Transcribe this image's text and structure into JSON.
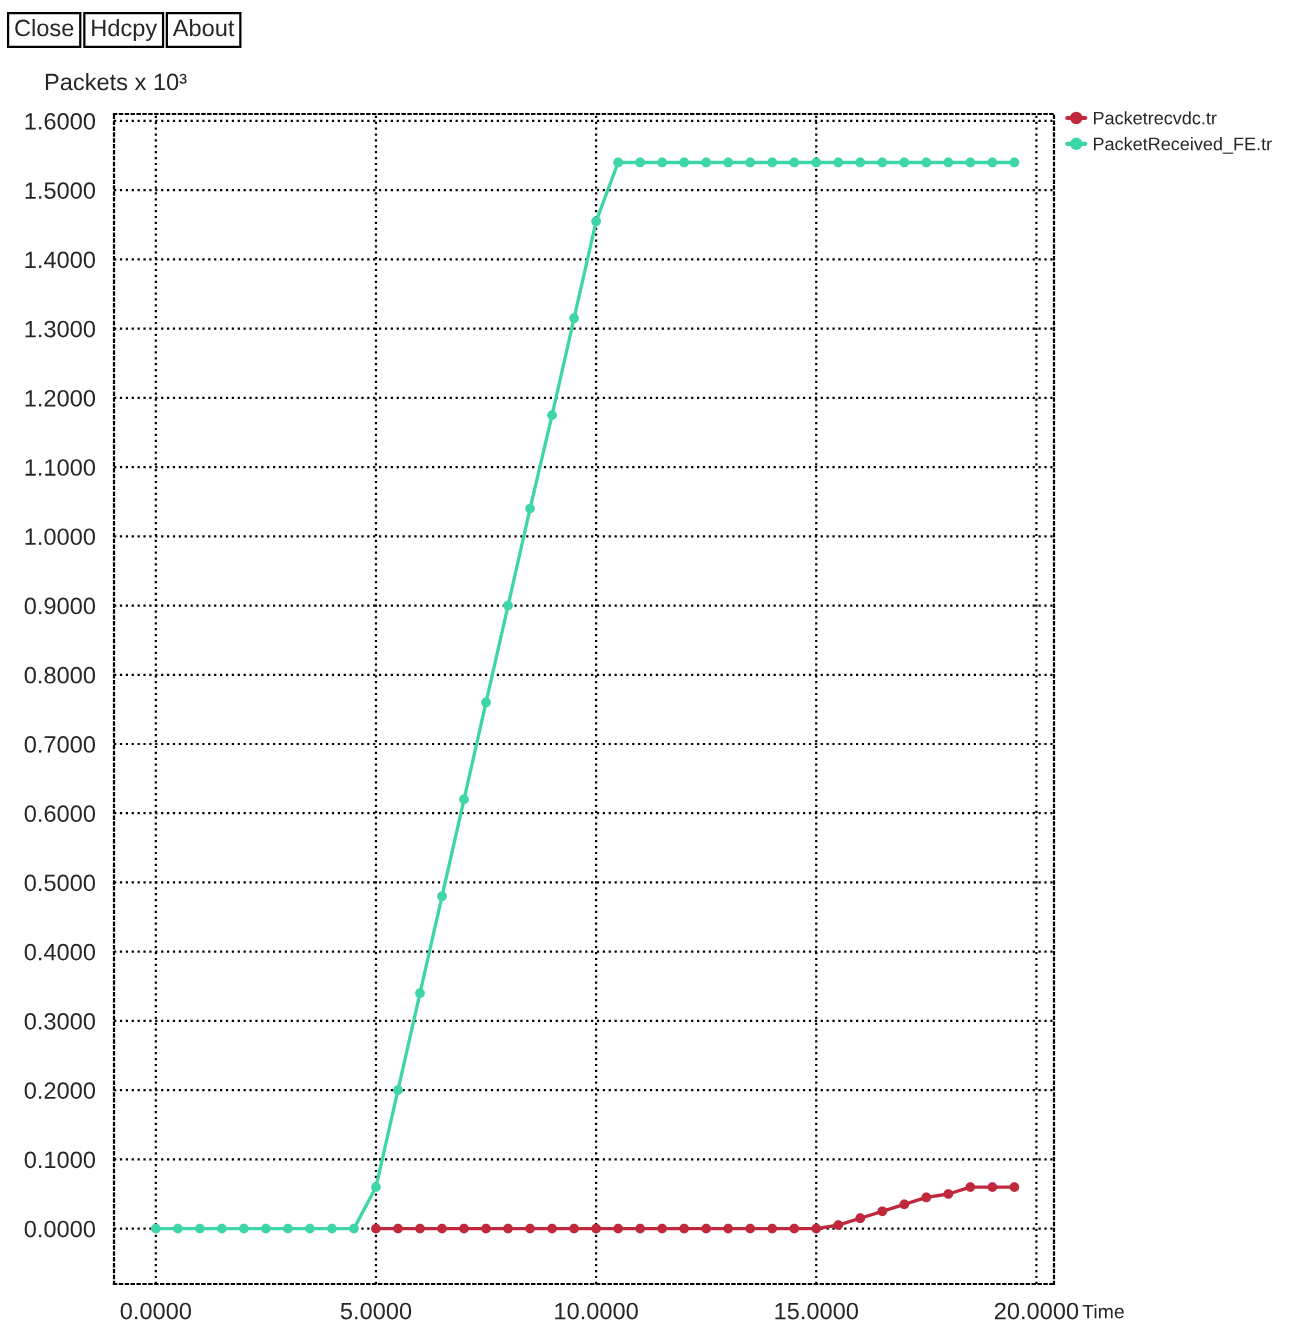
{
  "chart_data": {
    "type": "line",
    "xlabel": "Time",
    "ylabel": "Packets x 10³",
    "annotations": [
      "Close",
      "Hdcpy",
      "About"
    ],
    "x": [
      0,
      0.5,
      1,
      1.5,
      2,
      2.5,
      3,
      3.5,
      4,
      4.5,
      5,
      5.5,
      6,
      6.5,
      7,
      7.5,
      8,
      8.5,
      9,
      9.5,
      10,
      10.5,
      11,
      11.5,
      12,
      12.5,
      13,
      13.5,
      14,
      14.5,
      15,
      15.5,
      16,
      16.5,
      17,
      17.5,
      18,
      18.5,
      19,
      19.5
    ],
    "series": [
      {
        "name": "Packetrecvdc.tr",
        "color": "#c0283c",
        "values": [
          null,
          null,
          null,
          null,
          null,
          null,
          null,
          null,
          null,
          null,
          0,
          0,
          0,
          0,
          0,
          0,
          0,
          0,
          0,
          0,
          0,
          0,
          0,
          0,
          0,
          0,
          0,
          0,
          0,
          0,
          0,
          0.005,
          0.015,
          0.025,
          0.035,
          0.045,
          0.05,
          0.06,
          0.06,
          0.06
        ]
      },
      {
        "name": "PacketReceived_FE.tr",
        "color": "#3ed6a8",
        "values": [
          0,
          0,
          0,
          0,
          0,
          0,
          0,
          0,
          0,
          0,
          0.06,
          0.2,
          0.34,
          0.48,
          0.62,
          0.76,
          0.9,
          1.04,
          1.175,
          1.315,
          1.455,
          1.54,
          1.54,
          1.54,
          1.54,
          1.54,
          1.54,
          1.54,
          1.54,
          1.54,
          1.54,
          1.54,
          1.54,
          1.54,
          1.54,
          1.54,
          1.54,
          1.54,
          1.54,
          1.54
        ]
      }
    ],
    "xlim": [
      -0.95,
      20.4
    ],
    "ylim": [
      -0.08,
      1.61
    ],
    "xticks": [
      {
        "value": 0,
        "label": "0.0000"
      },
      {
        "value": 5,
        "label": "5.0000"
      },
      {
        "value": 10,
        "label": "10.0000"
      },
      {
        "value": 15,
        "label": "15.0000"
      },
      {
        "value": 20,
        "label": "20.0000"
      }
    ],
    "yticks": [
      {
        "value": 0,
        "label": "0.0000"
      },
      {
        "value": 0.1,
        "label": "0.1000"
      },
      {
        "value": 0.2,
        "label": "0.2000"
      },
      {
        "value": 0.3,
        "label": "0.3000"
      },
      {
        "value": 0.4,
        "label": "0.4000"
      },
      {
        "value": 0.5,
        "label": "0.5000"
      },
      {
        "value": 0.6,
        "label": "0.6000"
      },
      {
        "value": 0.7,
        "label": "0.7000"
      },
      {
        "value": 0.8,
        "label": "0.8000"
      },
      {
        "value": 0.9,
        "label": "0.9000"
      },
      {
        "value": 1.0,
        "label": "1.0000"
      },
      {
        "value": 1.1,
        "label": "1.1000"
      },
      {
        "value": 1.2,
        "label": "1.2000"
      },
      {
        "value": 1.3,
        "label": "1.3000"
      },
      {
        "value": 1.4,
        "label": "1.4000"
      },
      {
        "value": 1.5,
        "label": "1.5000"
      },
      {
        "value": 1.6,
        "label": "1.6000"
      }
    ],
    "grid": true,
    "legend": "top right",
    "marker": "circle",
    "line_style": "solid"
  }
}
